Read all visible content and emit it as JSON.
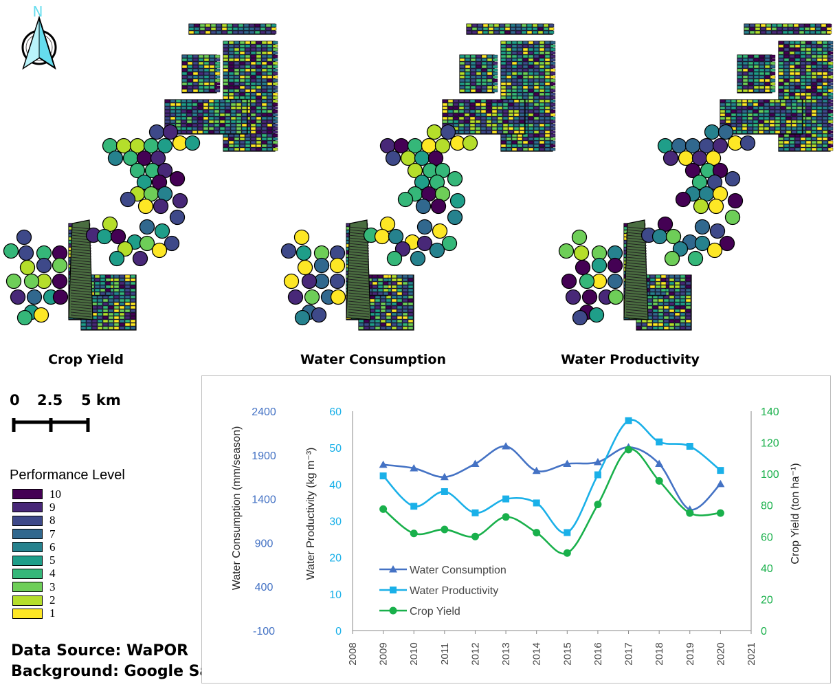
{
  "north_arrow": {
    "label": "N",
    "icon": "north-arrow-icon",
    "color": "#66ddee"
  },
  "maps": [
    {
      "title": "Crop Yield"
    },
    {
      "title": "Water Consumption"
    },
    {
      "title": "Water Productivity"
    }
  ],
  "scale_bar": {
    "labels": [
      "0",
      "2.5",
      "5 km"
    ]
  },
  "legend": {
    "title": "Performance Level",
    "items": [
      {
        "label": "10",
        "color": "#440154"
      },
      {
        "label": "9",
        "color": "#482878"
      },
      {
        "label": "8",
        "color": "#3e4989"
      },
      {
        "label": "7",
        "color": "#31688e"
      },
      {
        "label": "6",
        "color": "#26828e"
      },
      {
        "label": "5",
        "color": "#1f9e89"
      },
      {
        "label": "4",
        "color": "#35b779"
      },
      {
        "label": "3",
        "color": "#6ece58"
      },
      {
        "label": "2",
        "color": "#b5de2b"
      },
      {
        "label": "1",
        "color": "#fde725"
      }
    ]
  },
  "source": {
    "line1": "Data Source: WaPOR",
    "line2": "Background: Google Satellite"
  },
  "chart_data": {
    "type": "line",
    "x": [
      2009,
      2010,
      2011,
      2012,
      2013,
      2014,
      2015,
      2016,
      2017,
      2018,
      2019,
      2020
    ],
    "xlim": [
      2008,
      2021
    ],
    "xticks": [
      "2008",
      "2009",
      "2010",
      "2011",
      "2012",
      "2013",
      "2014",
      "2015",
      "2016",
      "2017",
      "2018",
      "2019",
      "2020",
      "2021"
    ],
    "axes": {
      "consumption": {
        "label": "Water Consumption  (mm/season)",
        "range": [
          -100,
          2400
        ],
        "ticks": [
          "2400",
          "1900",
          "1400",
          "900",
          "400",
          "-100"
        ],
        "color": "#4472c4"
      },
      "productivity": {
        "label": "Water Productivity (kg m⁻³)",
        "range": [
          0,
          60
        ],
        "ticks": [
          "60",
          "50",
          "40",
          "30",
          "20",
          "10",
          "0"
        ],
        "color": "#1ab0e8"
      },
      "yield": {
        "label": "Crop Yield (ton ha⁻¹)",
        "range": [
          0,
          140
        ],
        "ticks": [
          "140",
          "120",
          "100",
          "80",
          "60",
          "40",
          "20",
          "0"
        ],
        "color": "#19b04b"
      }
    },
    "series": [
      {
        "name": "Water Consumption",
        "axis": "consumption",
        "marker": "triangle",
        "color": "#4472c4",
        "values": [
          1790,
          1750,
          1650,
          1800,
          2000,
          1720,
          1800,
          1820,
          1990,
          1800,
          1280,
          1570
        ]
      },
      {
        "name": "Water Productivity",
        "axis": "productivity",
        "marker": "square",
        "color": "#1ab0e8",
        "values": [
          42.3,
          34.0,
          38.0,
          32.2,
          36.0,
          34.9,
          26.8,
          42.6,
          57.4,
          51.6,
          50.4,
          43.8
        ]
      },
      {
        "name": "Crop Yield",
        "axis": "yield",
        "marker": "circle",
        "color": "#19b04b",
        "values": [
          77.5,
          62.0,
          64.5,
          60.0,
          72.5,
          62.5,
          49.5,
          80.5,
          115.5,
          95.5,
          75.0,
          75.0
        ]
      }
    ],
    "legend_position": "bottom-left",
    "grid": false
  }
}
